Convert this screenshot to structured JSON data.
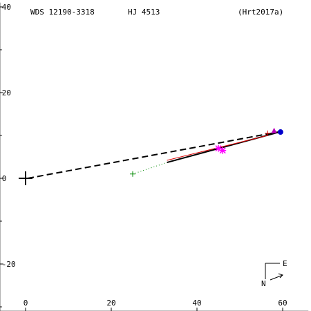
{
  "header": {
    "wds_id": "WDS 12190-3318",
    "discoverer": "HJ 4513",
    "reference": "(Hrt2017a)"
  },
  "compass": {
    "east_label": "E",
    "north_label": "N"
  },
  "colors": {
    "axes": "#000000",
    "measure_red": "#dd0000",
    "measure_green": "#008800",
    "measure_magenta": "#ff00ff",
    "measure_blue": "#0000cc",
    "measure_purple": "#bb00bb"
  },
  "chart_data": {
    "type": "scatter",
    "title": "",
    "xlabel": "",
    "ylabel": "",
    "xlim": [
      -6,
      66
    ],
    "ylim": [
      -31,
      41
    ],
    "x_ticks": [
      {
        "value": 0,
        "label": "0"
      },
      {
        "value": 20,
        "label": "20"
      },
      {
        "value": 40,
        "label": "40"
      },
      {
        "value": 60,
        "label": "60"
      }
    ],
    "y_ticks": [
      {
        "value": -20,
        "label": "-20"
      },
      {
        "value": 0,
        "label": "0"
      },
      {
        "value": 20,
        "label": "20"
      },
      {
        "value": 40,
        "label": "40"
      }
    ],
    "primary": {
      "x": 0,
      "y": 0
    },
    "orbit_dashed": [
      [
        0.5,
        0
      ],
      [
        60,
        11
      ]
    ],
    "orbit_solid": [
      [
        33,
        3.7
      ],
      [
        60,
        11
      ]
    ],
    "measure_segment_red": [
      [
        33,
        4.2
      ],
      [
        56.5,
        10
      ]
    ],
    "residual_dotted": [
      [
        25,
        1
      ],
      [
        33,
        3.7
      ]
    ],
    "observations": [
      {
        "x": 25,
        "y": 1,
        "marker": "plus",
        "color": "measure_green"
      },
      {
        "x": 45,
        "y": 7,
        "marker": "asterisk",
        "color": "measure_magenta"
      },
      {
        "x": 46,
        "y": 6.5,
        "marker": "asterisk",
        "color": "measure_magenta"
      },
      {
        "x": 56.5,
        "y": 10.5,
        "marker": "plus",
        "color": "measure_red"
      },
      {
        "x": 58,
        "y": 11,
        "marker": "triangle",
        "color": "measure_purple"
      },
      {
        "x": 59.5,
        "y": 10.8,
        "marker": "circle",
        "color": "measure_blue"
      }
    ]
  }
}
